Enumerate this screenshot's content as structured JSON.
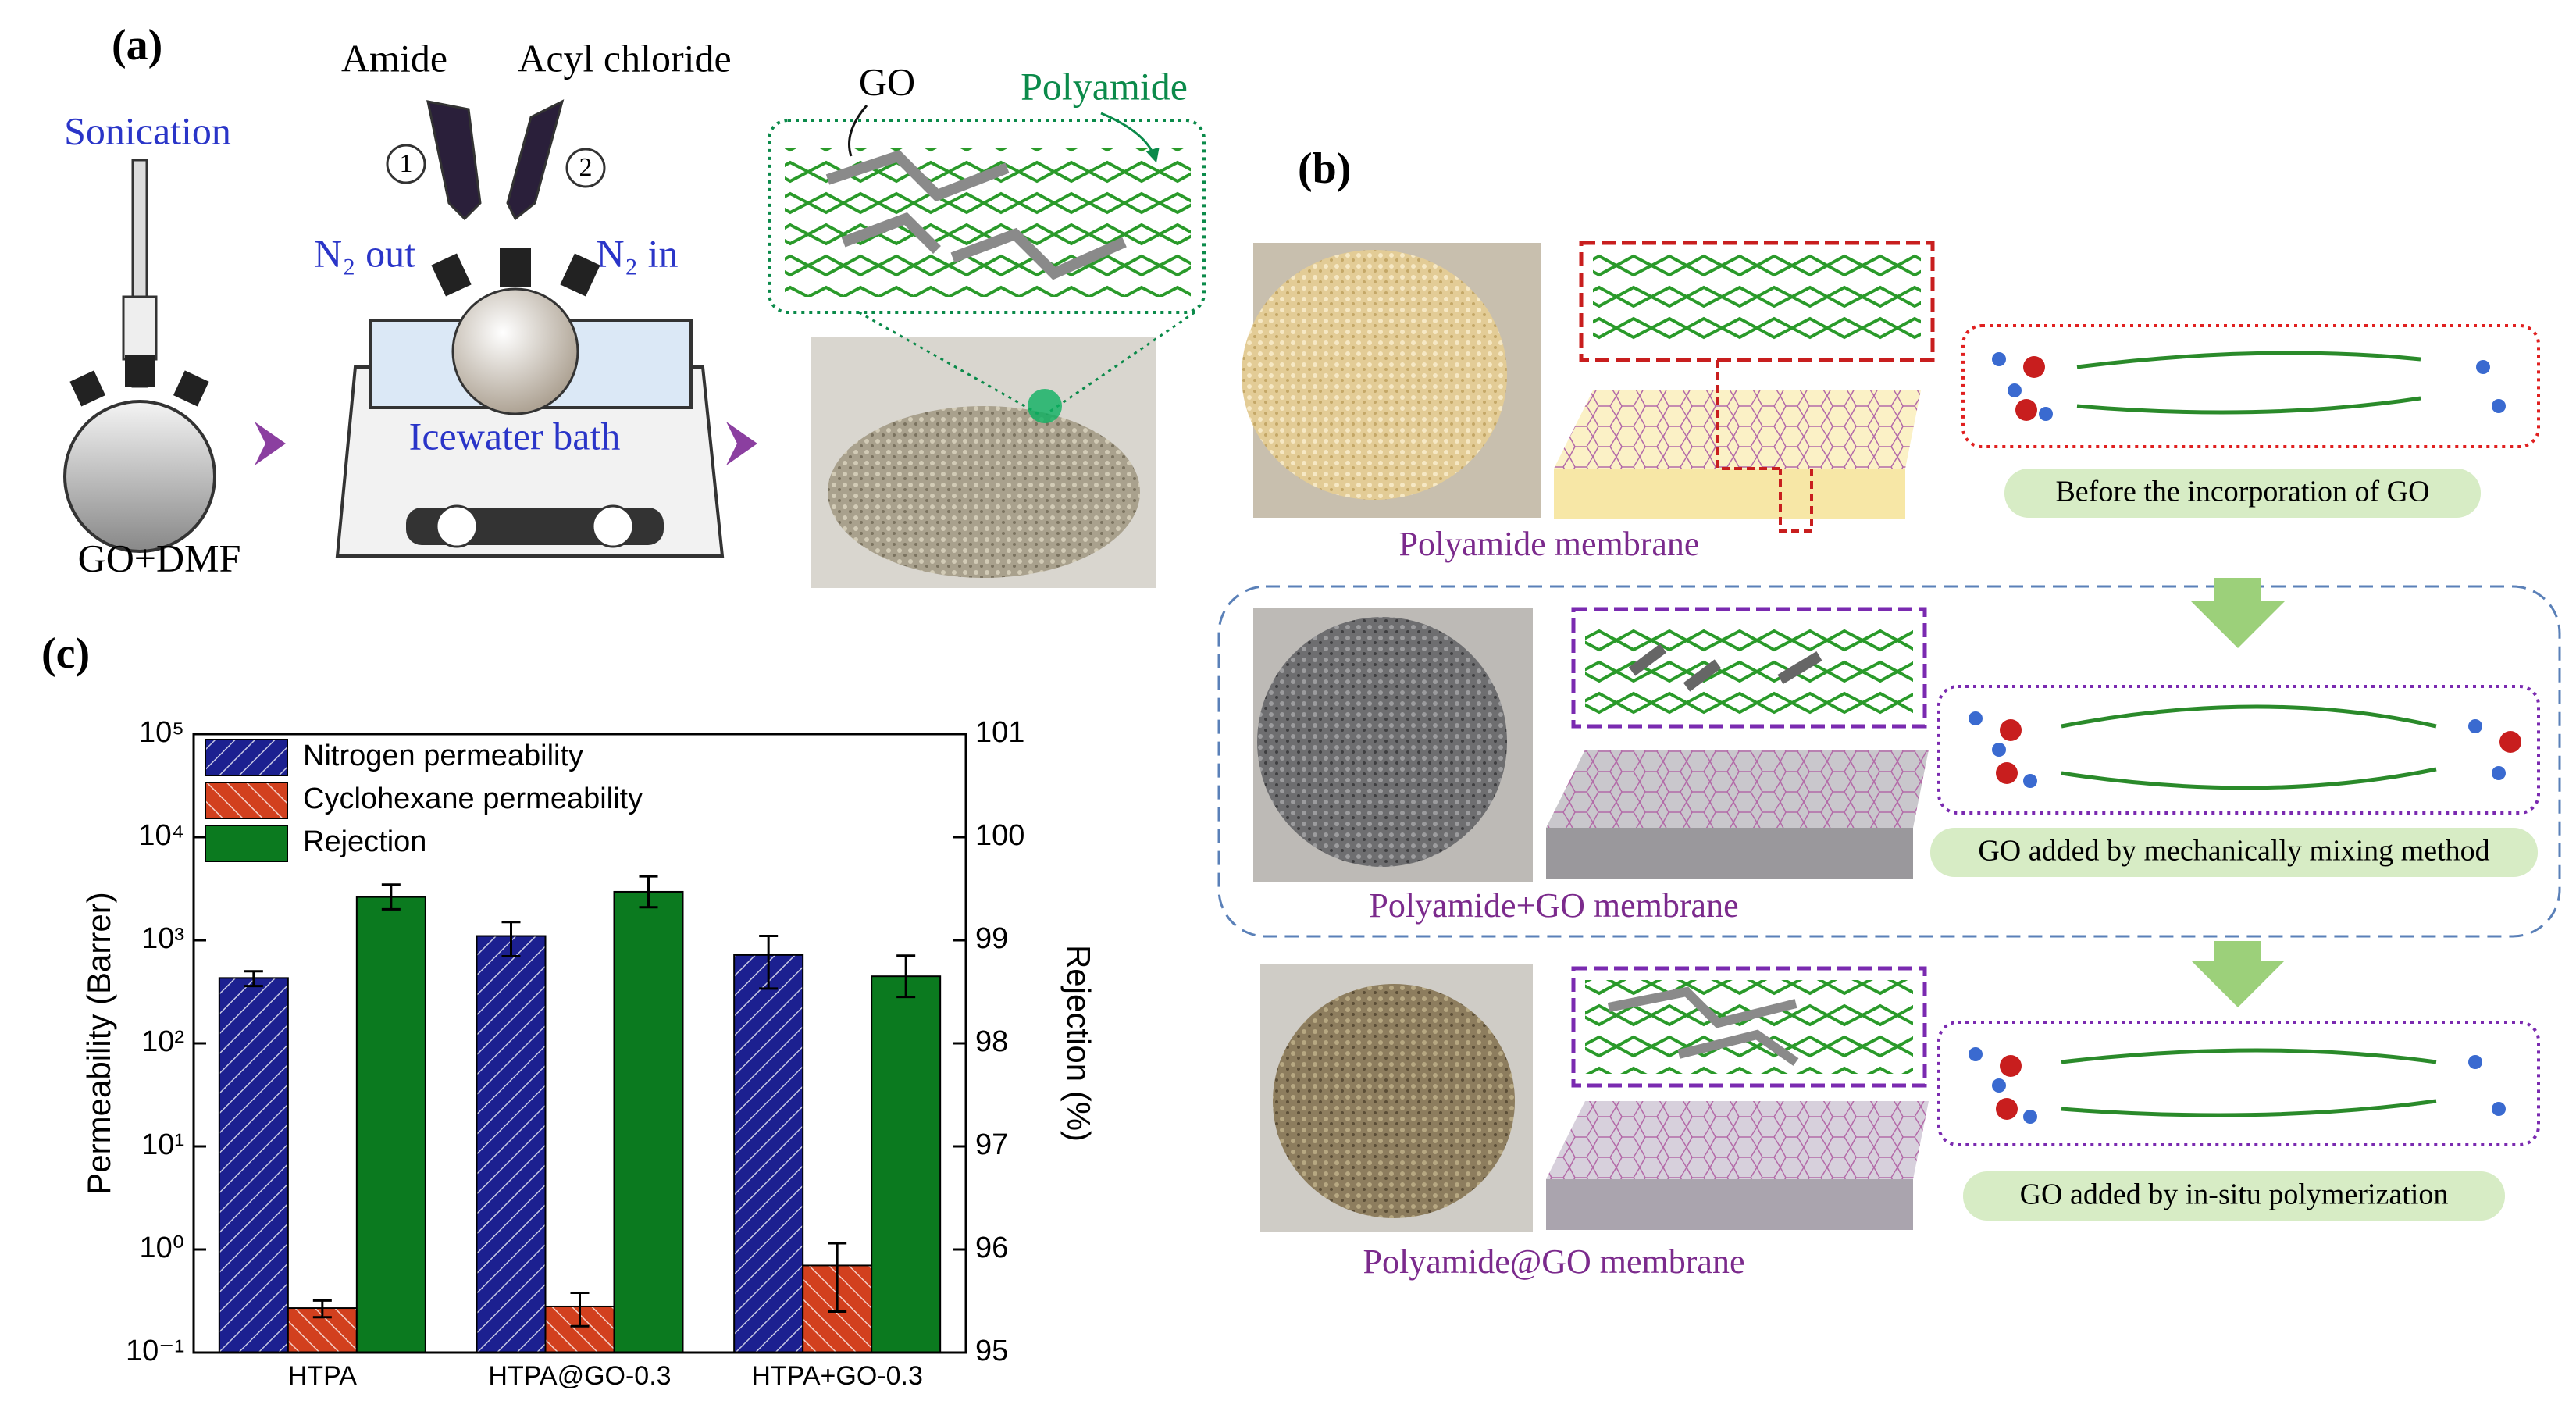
{
  "panel_a": {
    "label": "(a)",
    "sonication": "Sonication",
    "amide": "Amide",
    "acyl_chloride": "Acyl chloride",
    "step_1": "1",
    "step_2": "2",
    "n2_out": "N₂ out",
    "n2_in": "N₂ in",
    "bath": "Icewater bath",
    "mixture": "GO+DMF",
    "go": "GO",
    "polyamide": "Polyamide"
  },
  "panel_b": {
    "label": "(b)",
    "rows": [
      {
        "membrane": "Polyamide membrane",
        "method": "Before the incorporation of GO"
      },
      {
        "membrane": "Polyamide+GO membrane",
        "method": "GO added by mechanically mixing method"
      },
      {
        "membrane": "Polyamide@GO membrane",
        "method": "GO added by in-situ polymerization"
      }
    ]
  },
  "panel_c": {
    "label": "(c)"
  },
  "chart_data": {
    "type": "bar",
    "categories": [
      "HTPA",
      "HTPA@GO-0.3",
      "HTPA+GO-0.3"
    ],
    "ylabel": "Permeability (Barrer)",
    "y2label": "Rejection (%)",
    "yscale": "log",
    "ylim": [
      0.1,
      100000
    ],
    "yticks": [
      {
        "value": 0.1,
        "label": "10⁻¹"
      },
      {
        "value": 1,
        "label": "10⁰"
      },
      {
        "value": 10,
        "label": "10¹"
      },
      {
        "value": 100,
        "label": "10²"
      },
      {
        "value": 1000,
        "label": "10³"
      },
      {
        "value": 10000,
        "label": "10⁴"
      },
      {
        "value": 100000,
        "label": "10⁵"
      }
    ],
    "y2lim": [
      95,
      101
    ],
    "y2ticks": [
      95,
      96,
      97,
      98,
      99,
      100,
      101
    ],
    "legend": "upper left",
    "series": [
      {
        "name": "Nitrogen permeability",
        "color": "#1c2090",
        "hatch": true,
        "values": [
          430,
          1100,
          720
        ],
        "errors": [
          70,
          400,
          380
        ]
      },
      {
        "name": "Cyclohexane permeability",
        "color": "#d2401e",
        "hatch": true,
        "values": [
          0.27,
          0.28,
          0.7
        ],
        "errors": [
          0.05,
          0.1,
          0.45
        ]
      },
      {
        "name": "Rejection",
        "color": "#0b7a1f",
        "hatch": false,
        "axis": "y2",
        "values": [
          99.42,
          99.47,
          98.65
        ],
        "errors": [
          0.12,
          0.15,
          0.2
        ]
      }
    ]
  }
}
